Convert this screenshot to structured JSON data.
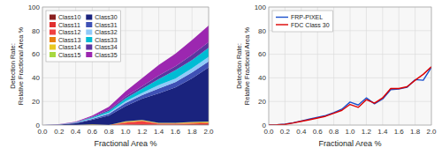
{
  "chart_data": [
    {
      "type": "area",
      "stacked": true,
      "xlabel": "Fractional Area %",
      "ylabel": "Detection Rate:\nRelative Fractional Area %",
      "x": [
        0.0,
        0.2,
        0.4,
        0.6,
        0.8,
        1.0,
        1.2,
        1.4,
        1.6,
        1.8,
        2.0
      ],
      "series": [
        {
          "name": "Class10",
          "color": "#8B2020",
          "values": [
            0.0,
            0.0,
            0.0,
            0.0,
            0.0,
            0.3,
            0.5,
            0.3,
            0.3,
            0.5,
            0.5
          ]
        },
        {
          "name": "Class11",
          "color": "#E03030",
          "values": [
            0.0,
            0.0,
            0.0,
            0.0,
            0.0,
            0.3,
            0.3,
            0.3,
            0.3,
            0.3,
            0.3
          ]
        },
        {
          "name": "Class12",
          "color": "#F04040",
          "values": [
            0.0,
            0.0,
            0.0,
            0.0,
            0.0,
            1.5,
            2.5,
            0.5,
            0.5,
            0.5,
            0.8
          ]
        },
        {
          "name": "Class13",
          "color": "#E88010",
          "values": [
            0.0,
            0.0,
            0.0,
            0.0,
            0.0,
            0.5,
            0.5,
            0.3,
            0.3,
            0.8,
            0.8
          ]
        },
        {
          "name": "Class14",
          "color": "#E8C820",
          "values": [
            0.0,
            0.0,
            0.0,
            0.5,
            0.0,
            0.3,
            0.3,
            0.3,
            0.3,
            0.3,
            0.3
          ]
        },
        {
          "name": "Class15",
          "color": "#A8D840",
          "values": [
            0.0,
            0.0,
            0.0,
            0.0,
            0.0,
            0.2,
            0.2,
            0.2,
            0.2,
            0.2,
            0.2
          ]
        },
        {
          "name": "Class30",
          "color": "#1a237e",
          "values": [
            0.0,
            0.3,
            1.5,
            4.0,
            8.0,
            13.0,
            18.0,
            25.0,
            30.0,
            37.0,
            46.0
          ]
        },
        {
          "name": "Class31",
          "color": "#3F51B5",
          "values": [
            0.0,
            0.1,
            0.3,
            0.8,
            1.5,
            2.5,
            3.0,
            4.0,
            4.5,
            5.0,
            5.0
          ]
        },
        {
          "name": "Class32",
          "color": "#90CAF9",
          "values": [
            0.0,
            0.1,
            0.2,
            0.5,
            1.0,
            1.5,
            2.0,
            3.0,
            3.0,
            3.5,
            4.0
          ]
        },
        {
          "name": "Class33",
          "color": "#00BCD4",
          "values": [
            0.0,
            0.1,
            0.3,
            0.8,
            1.5,
            2.5,
            3.5,
            5.0,
            7.0,
            7.0,
            7.5
          ]
        },
        {
          "name": "Class34",
          "color": "#5C35A0",
          "values": [
            0.0,
            0.0,
            0.2,
            0.5,
            1.0,
            1.5,
            2.0,
            3.0,
            3.5,
            4.5,
            5.0
          ]
        },
        {
          "name": "Class35",
          "color": "#9C27B0",
          "values": [
            0.0,
            0.1,
            0.3,
            1.0,
            2.5,
            4.5,
            7.0,
            9.0,
            10.5,
            12.5,
            14.0
          ]
        }
      ],
      "xlim": [
        0.0,
        2.0
      ],
      "ylim": [
        0,
        100
      ],
      "xticks": [
        {
          "value": 0,
          "label": "0.0"
        },
        0.2,
        0.4,
        0.6,
        0.8,
        {
          "value": 1,
          "label": "1.0"
        },
        1.2,
        1.4,
        1.6,
        1.8,
        {
          "value": 2,
          "label": "2.0"
        }
      ],
      "yticks": [
        0,
        20,
        40,
        60,
        80,
        100
      ],
      "grid": true,
      "legend": "upper left"
    },
    {
      "type": "line",
      "xlabel": "Fractional Area %",
      "ylabel": "Detection Rate:\nRelative Fractional Area %",
      "x": [
        0.0,
        0.1,
        0.2,
        0.3,
        0.4,
        0.5,
        0.6,
        0.7,
        0.8,
        0.9,
        1.0,
        1.1,
        1.2,
        1.3,
        1.4,
        1.5,
        1.6,
        1.7,
        1.8,
        1.9,
        2.0
      ],
      "series": [
        {
          "name": "FRP-PIXEL",
          "color": "#1a4fcc",
          "values": [
            0.0,
            0.3,
            0.8,
            2.0,
            3.5,
            5.0,
            6.5,
            8.0,
            10.5,
            13.5,
            19.5,
            17.0,
            23.0,
            18.0,
            22.0,
            30.0,
            30.5,
            32.0,
            38.5,
            38.0,
            49.0
          ]
        },
        {
          "name": "FDC Class 30",
          "color": "#dd0000",
          "values": [
            0.0,
            0.2,
            0.6,
            1.8,
            3.2,
            4.5,
            6.0,
            7.5,
            10.0,
            12.5,
            17.5,
            15.0,
            21.5,
            18.5,
            23.0,
            31.0,
            31.0,
            32.5,
            38.0,
            43.0,
            49.5
          ]
        }
      ],
      "xlim": [
        0.0,
        2.0
      ],
      "ylim": [
        0,
        100
      ],
      "xticks": [
        {
          "value": 0,
          "label": "0.0"
        },
        0.2,
        0.4,
        0.6,
        0.8,
        {
          "value": 1,
          "label": "1.0"
        },
        1.2,
        1.4,
        1.6,
        1.8,
        {
          "value": 2,
          "label": "2.0"
        }
      ],
      "yticks": [
        0,
        20,
        40,
        60,
        80,
        100
      ],
      "grid": true,
      "legend": "upper left"
    }
  ]
}
